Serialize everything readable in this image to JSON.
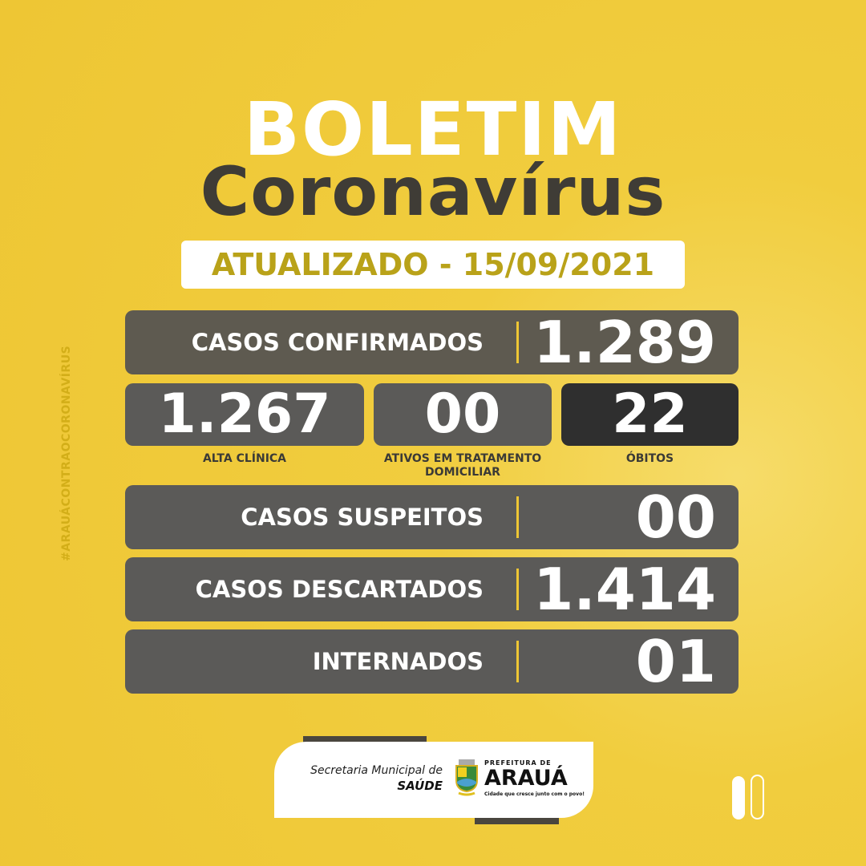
{
  "title": "BOLETIM",
  "subtitle": "Coronavírus",
  "updated": "ATUALIZADO - 15/09/2021",
  "hashtag": "#ARAUÁCONTRAOCORONAVÍRUS",
  "confirmados": {
    "label": "CASOS CONFIRMADOS",
    "value": "1.289"
  },
  "alta": {
    "label": "ALTA CLÍNICA",
    "value": "1.267"
  },
  "ativos": {
    "label": "ATIVOS EM TRATAMENTO DOMICILIAR",
    "value": "00"
  },
  "obitos": {
    "label": "ÓBITOS",
    "value": "22"
  },
  "suspeitos": {
    "label": "CASOS SUSPEITOS",
    "value": "00"
  },
  "descartados": {
    "label": "CASOS DESCARTADOS",
    "value": "1.414"
  },
  "internados": {
    "label": "INTERNADOS",
    "value": "01"
  },
  "footer": {
    "secretaria": "Secretaria Municipal de",
    "saude": "SAÚDE",
    "prefeitura": "PREFEITURA DE",
    "city": "ARAUÁ",
    "slogan": "Cidade que cresce junto com o povo!"
  },
  "pagination": {
    "current": 1,
    "total": 2
  },
  "colors": {
    "background": "#eec634",
    "bar": "#5b5a58",
    "obitos": "#2f2f2f",
    "accent": "#eec634",
    "date_text": "#b9a219"
  }
}
